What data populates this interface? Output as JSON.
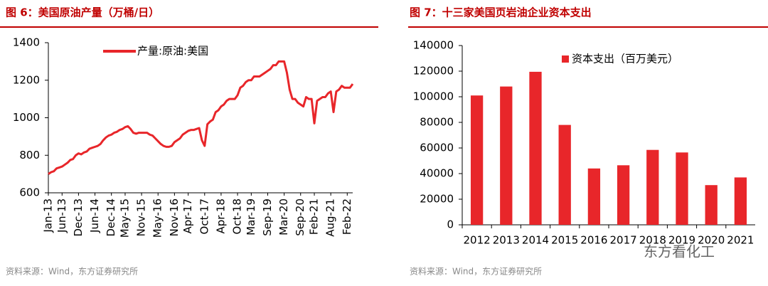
{
  "chart_data": [
    {
      "type": "line",
      "title": "图 6：美国原油产量（万桶/日）",
      "categories": [
        "Jan-13",
        null,
        null,
        null,
        null,
        "Jun-13",
        null,
        null,
        null,
        null,
        null,
        "Dec-13",
        null,
        null,
        null,
        null,
        null,
        "Jun-14",
        null,
        null,
        null,
        null,
        null,
        "Dec-14",
        null,
        null,
        null,
        null,
        "May-15",
        null,
        null,
        null,
        null,
        null,
        "Nov-15",
        null,
        null,
        null,
        null,
        null,
        "May-16",
        null,
        null,
        null,
        null,
        null,
        "Nov-16",
        null,
        null,
        null,
        null,
        "Apr-17",
        null,
        null,
        null,
        null,
        null,
        "Oct-17",
        null,
        null,
        null,
        null,
        null,
        "Apr-18",
        null,
        null,
        null,
        null,
        null,
        "Oct-18",
        null,
        null,
        null,
        null,
        "Mar-19",
        null,
        null,
        null,
        null,
        null,
        "Sep-19",
        null,
        null,
        null,
        null,
        null,
        "Mar-20",
        null,
        null,
        null,
        null,
        null,
        "Sep-20",
        null,
        null,
        null,
        null,
        "Feb-21",
        null,
        null,
        null,
        null,
        null,
        "Aug-21",
        null,
        null,
        null,
        null,
        null,
        "Feb-22",
        null,
        null
      ],
      "series": [
        {
          "name": "产量:原油:美国",
          "color": "#e8262a",
          "values": [
            700,
            710,
            715,
            730,
            735,
            740,
            750,
            760,
            775,
            780,
            800,
            810,
            805,
            815,
            820,
            835,
            840,
            845,
            850,
            860,
            880,
            895,
            905,
            910,
            920,
            925,
            935,
            940,
            950,
            955,
            940,
            920,
            915,
            920,
            920,
            920,
            920,
            910,
            905,
            890,
            875,
            860,
            850,
            845,
            845,
            850,
            870,
            880,
            890,
            910,
            920,
            930,
            935,
            935,
            940,
            945,
            880,
            850,
            965,
            980,
            990,
            1030,
            1040,
            1060,
            1070,
            1090,
            1100,
            1100,
            1100,
            1120,
            1160,
            1170,
            1190,
            1200,
            1200,
            1220,
            1220,
            1220,
            1230,
            1240,
            1250,
            1260,
            1280,
            1280,
            1300,
            1300,
            1300,
            1240,
            1150,
            1100,
            1100,
            1080,
            1070,
            1060,
            1110,
            1100,
            1100,
            970,
            1090,
            1100,
            1110,
            1110,
            1130,
            1140,
            1030,
            1140,
            1150,
            1170,
            1160,
            1160,
            1160,
            1180
          ]
        }
      ],
      "ylim": [
        600,
        1400
      ],
      "yticks": [
        600,
        800,
        1000,
        1200,
        1400
      ],
      "grid": false,
      "legend": "top",
      "source": "资料来源：Wind，东方证券研究所"
    },
    {
      "type": "bar",
      "title": "图 7：十三家美国页岩油企业资本支出",
      "categories": [
        "2012",
        "2013",
        "2014",
        "2015",
        "2016",
        "2017",
        "2018",
        "2019",
        "2020",
        "2021"
      ],
      "series": [
        {
          "name": "资本支出（百万美元）",
          "color": "#e8262a",
          "values": [
            101000,
            108000,
            119500,
            78000,
            44000,
            46500,
            58500,
            56500,
            31000,
            37000
          ]
        }
      ],
      "ylim": [
        0,
        140000
      ],
      "yticks": [
        0,
        20000,
        40000,
        60000,
        80000,
        100000,
        120000,
        140000
      ],
      "grid": false,
      "legend": "top",
      "source": "资料来源：Wind，东方证券研究所"
    }
  ],
  "watermark": "东方看化工"
}
